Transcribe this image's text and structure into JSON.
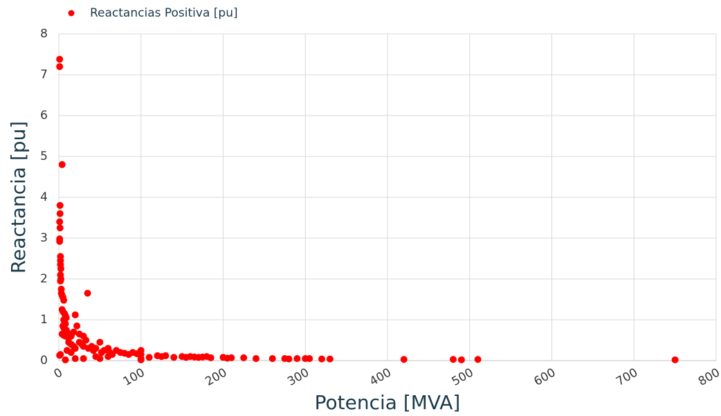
{
  "chart_data": {
    "type": "scatter",
    "legend": "Reactancias Positiva [pu]",
    "legend_position": "top-left",
    "x_label": "Potencia [MVA]",
    "y_label": "Reactancia [pu]",
    "color": "#ff0000",
    "x": [
      1,
      1,
      4,
      1.5,
      1.5,
      1,
      1.5,
      1,
      1,
      2,
      2,
      2,
      2.5,
      2,
      2.5,
      2,
      3,
      3,
      4,
      5,
      6,
      4,
      5,
      7,
      8,
      9,
      6,
      7,
      8,
      5,
      6,
      9,
      10,
      4,
      6,
      8,
      12,
      15,
      20,
      22,
      18,
      25,
      30,
      35,
      12,
      15,
      18,
      20,
      25,
      28,
      30,
      33,
      36,
      40,
      42,
      45,
      50,
      52,
      55,
      60,
      62,
      65,
      70,
      75,
      80,
      85,
      90,
      95,
      100,
      100,
      100,
      100,
      2,
      1,
      8,
      20,
      30,
      50,
      15,
      10,
      45,
      60,
      110,
      120,
      125,
      130,
      140,
      150,
      155,
      160,
      165,
      170,
      175,
      180,
      185,
      200,
      205,
      210,
      225,
      240,
      260,
      275,
      280,
      290,
      300,
      305,
      320,
      330,
      420,
      480,
      490,
      510,
      750
    ],
    "values": [
      7.38,
      7.2,
      4.8,
      3.8,
      3.6,
      3.4,
      3.25,
      2.98,
      2.92,
      2.55,
      2.45,
      2.35,
      2.25,
      2.1,
      2.0,
      1.95,
      1.75,
      1.65,
      1.6,
      1.55,
      1.48,
      1.25,
      1.2,
      1.15,
      1.1,
      1.05,
      1.0,
      0.95,
      0.9,
      0.85,
      0.8,
      0.75,
      0.7,
      0.65,
      0.62,
      0.6,
      0.55,
      0.6,
      1.12,
      0.85,
      0.7,
      0.65,
      0.6,
      1.65,
      0.45,
      0.4,
      0.35,
      0.3,
      0.45,
      0.4,
      0.35,
      0.5,
      0.3,
      0.35,
      0.25,
      0.3,
      0.45,
      0.2,
      0.25,
      0.3,
      0.2,
      0.15,
      0.25,
      0.2,
      0.18,
      0.15,
      0.2,
      0.17,
      0.25,
      0.15,
      0.05,
      0.02,
      0.15,
      0.13,
      0.02,
      0.05,
      0.05,
      0.05,
      0.2,
      0.25,
      0.1,
      0.1,
      0.08,
      0.12,
      0.1,
      0.12,
      0.08,
      0.1,
      0.08,
      0.1,
      0.09,
      0.08,
      0.09,
      0.1,
      0.07,
      0.08,
      0.06,
      0.07,
      0.07,
      0.05,
      0.05,
      0.05,
      0.04,
      0.05,
      0.05,
      0.05,
      0.04,
      0.04,
      0.03,
      0.03,
      0.02,
      0.03,
      0.02
    ],
    "xlim": [
      0,
      800
    ],
    "xticks": [
      0,
      100,
      200,
      300,
      400,
      500,
      600,
      700,
      800
    ],
    "ylim": [
      0,
      8
    ],
    "yticks": [
      0,
      1,
      2,
      3,
      4,
      5,
      6,
      7,
      8
    ],
    "grid": true
  }
}
